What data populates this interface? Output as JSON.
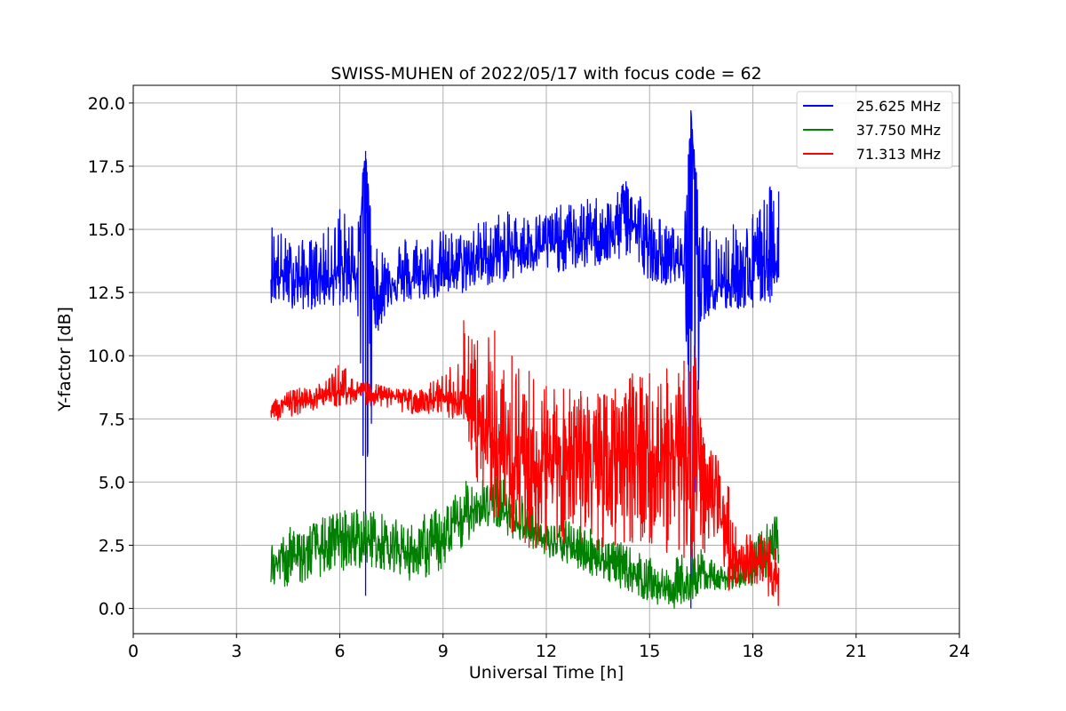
{
  "chart_data": {
    "type": "line",
    "title": "SWISS-MUHEN of 2022/05/17 with focus code = 62",
    "xlabel": "Universal Time [h]",
    "ylabel": "Y-factor [dB]",
    "xlim": [
      0,
      24
    ],
    "ylim": [
      -1.0,
      20.7
    ],
    "xticks": [
      0,
      3,
      6,
      9,
      12,
      15,
      18,
      21,
      24
    ],
    "xtick_labels": [
      "0",
      "3",
      "6",
      "9",
      "12",
      "15",
      "18",
      "21",
      "24"
    ],
    "yticks": [
      0.0,
      2.5,
      5.0,
      7.5,
      10.0,
      12.5,
      15.0,
      17.5,
      20.0
    ],
    "ytick_labels": [
      "0.0",
      "2.5",
      "5.0",
      "7.5",
      "10.0",
      "12.5",
      "15.0",
      "17.5",
      "20.0"
    ],
    "grid": true,
    "legend_position": "top-right",
    "series": [
      {
        "name": "25.625 MHz",
        "color": "#0000ff",
        "x": [
          4.0,
          4.5,
          5.0,
          5.5,
          6.0,
          6.5,
          6.75,
          7.0,
          7.5,
          8.0,
          8.5,
          9.0,
          9.5,
          10.0,
          10.5,
          11.0,
          11.5,
          12.0,
          12.5,
          13.0,
          13.5,
          14.0,
          14.3,
          14.6,
          15.0,
          15.5,
          16.0,
          16.2,
          16.5,
          17.0,
          17.5,
          18.0,
          18.5,
          18.75
        ],
        "y": [
          13.2,
          13.1,
          13.0,
          13.1,
          13.2,
          13.3,
          18.1,
          12.2,
          13.0,
          12.9,
          13.1,
          13.3,
          13.5,
          13.8,
          13.9,
          14.1,
          14.3,
          14.4,
          14.5,
          14.6,
          14.7,
          14.8,
          16.0,
          15.0,
          14.0,
          13.8,
          13.6,
          19.7,
          12.7,
          12.8,
          12.9,
          13.0,
          14.0,
          13.5
        ],
        "lows": [
          12.1,
          11.9,
          11.8,
          11.9,
          12.0,
          12.1,
          0.5,
          10.6,
          12.0,
          12.1,
          12.2,
          12.3,
          12.4,
          12.7,
          12.8,
          13.0,
          13.2,
          13.3,
          13.3,
          13.4,
          13.5,
          13.6,
          13.9,
          13.5,
          13.0,
          12.8,
          12.8,
          0.0,
          11.4,
          11.7,
          11.8,
          11.9,
          12.1,
          13.1
        ],
        "highs": [
          15.5,
          14.6,
          14.6,
          14.8,
          15.8,
          15.6,
          18.1,
          14.2,
          14.5,
          14.9,
          14.8,
          15.0,
          14.9,
          15.3,
          15.7,
          15.7,
          15.6,
          15.8,
          16.0,
          16.1,
          16.4,
          16.2,
          17.3,
          17.0,
          15.9,
          15.2,
          15.0,
          19.7,
          15.2,
          15.0,
          15.3,
          15.6,
          16.7,
          16.5
        ]
      },
      {
        "name": "37.750 MHz",
        "color": "#008000",
        "x": [
          4.0,
          4.5,
          5.0,
          5.5,
          6.0,
          6.5,
          7.0,
          7.5,
          8.0,
          8.5,
          9.0,
          9.5,
          10.0,
          10.5,
          11.0,
          11.5,
          12.0,
          12.5,
          13.0,
          13.5,
          14.0,
          14.5,
          15.0,
          15.5,
          16.0,
          16.5,
          17.0,
          17.5,
          18.0,
          18.5,
          18.75
        ],
        "y": [
          1.6,
          2.0,
          2.2,
          2.4,
          2.6,
          2.8,
          2.7,
          2.5,
          2.2,
          2.3,
          2.6,
          3.4,
          4.1,
          4.0,
          3.6,
          3.1,
          2.6,
          2.5,
          2.2,
          2.0,
          1.7,
          1.4,
          1.0,
          0.8,
          0.6,
          1.4,
          1.2,
          1.2,
          1.4,
          2.0,
          2.6
        ],
        "lows": [
          0.6,
          0.9,
          1.0,
          1.3,
          1.4,
          1.6,
          1.6,
          1.5,
          1.1,
          1.2,
          1.5,
          2.2,
          3.2,
          3.2,
          2.8,
          2.5,
          1.9,
          1.8,
          1.5,
          1.2,
          0.9,
          0.6,
          0.2,
          0.0,
          0.0,
          0.7,
          0.7,
          0.8,
          0.9,
          1.3,
          1.8
        ],
        "highs": [
          2.6,
          3.2,
          3.3,
          3.6,
          3.9,
          4.0,
          3.9,
          3.6,
          3.3,
          3.8,
          4.1,
          4.8,
          5.5,
          5.3,
          5.0,
          4.4,
          3.3,
          3.5,
          3.4,
          3.1,
          2.7,
          2.4,
          2.0,
          1.5,
          2.4,
          2.4,
          1.7,
          1.8,
          2.6,
          3.6,
          3.8
        ]
      },
      {
        "name": "71.313 MHz",
        "color": "#ff0000",
        "x": [
          4.0,
          4.5,
          5.0,
          5.5,
          6.0,
          6.5,
          7.0,
          7.5,
          8.0,
          8.5,
          9.0,
          9.4,
          9.6,
          10.0,
          10.5,
          11.0,
          11.5,
          12.0,
          12.5,
          13.0,
          13.5,
          14.0,
          14.5,
          15.0,
          15.5,
          16.0,
          16.3,
          16.6,
          17.0,
          17.3,
          17.6,
          18.0,
          18.5,
          18.75
        ],
        "y": [
          7.9,
          8.1,
          8.3,
          8.4,
          8.5,
          8.6,
          8.5,
          8.4,
          8.3,
          8.2,
          8.2,
          8.0,
          8.6,
          7.0,
          6.2,
          5.8,
          5.6,
          5.8,
          6.0,
          6.1,
          6.0,
          6.2,
          6.3,
          6.2,
          6.0,
          6.0,
          5.5,
          5.2,
          4.2,
          2.2,
          1.8,
          2.0,
          1.6,
          1.2
        ],
        "lows": [
          7.4,
          7.5,
          7.8,
          7.9,
          8.0,
          8.1,
          8.0,
          7.9,
          7.7,
          7.6,
          7.5,
          7.3,
          7.5,
          5.0,
          3.6,
          3.0,
          2.4,
          2.3,
          2.6,
          2.6,
          2.3,
          2.5,
          2.6,
          2.6,
          2.2,
          2.0,
          1.6,
          2.2,
          2.9,
          0.7,
          0.9,
          1.0,
          0.3,
          0.0
        ],
        "highs": [
          8.5,
          8.6,
          8.8,
          8.9,
          9.8,
          9.0,
          8.9,
          8.7,
          8.7,
          8.8,
          9.3,
          9.8,
          11.4,
          10.6,
          11.0,
          10.0,
          9.4,
          8.8,
          8.7,
          8.6,
          8.5,
          8.7,
          9.3,
          9.3,
          9.5,
          9.8,
          10.4,
          6.5,
          6.0,
          4.8,
          2.7,
          3.1,
          2.8,
          2.5
        ]
      }
    ]
  }
}
